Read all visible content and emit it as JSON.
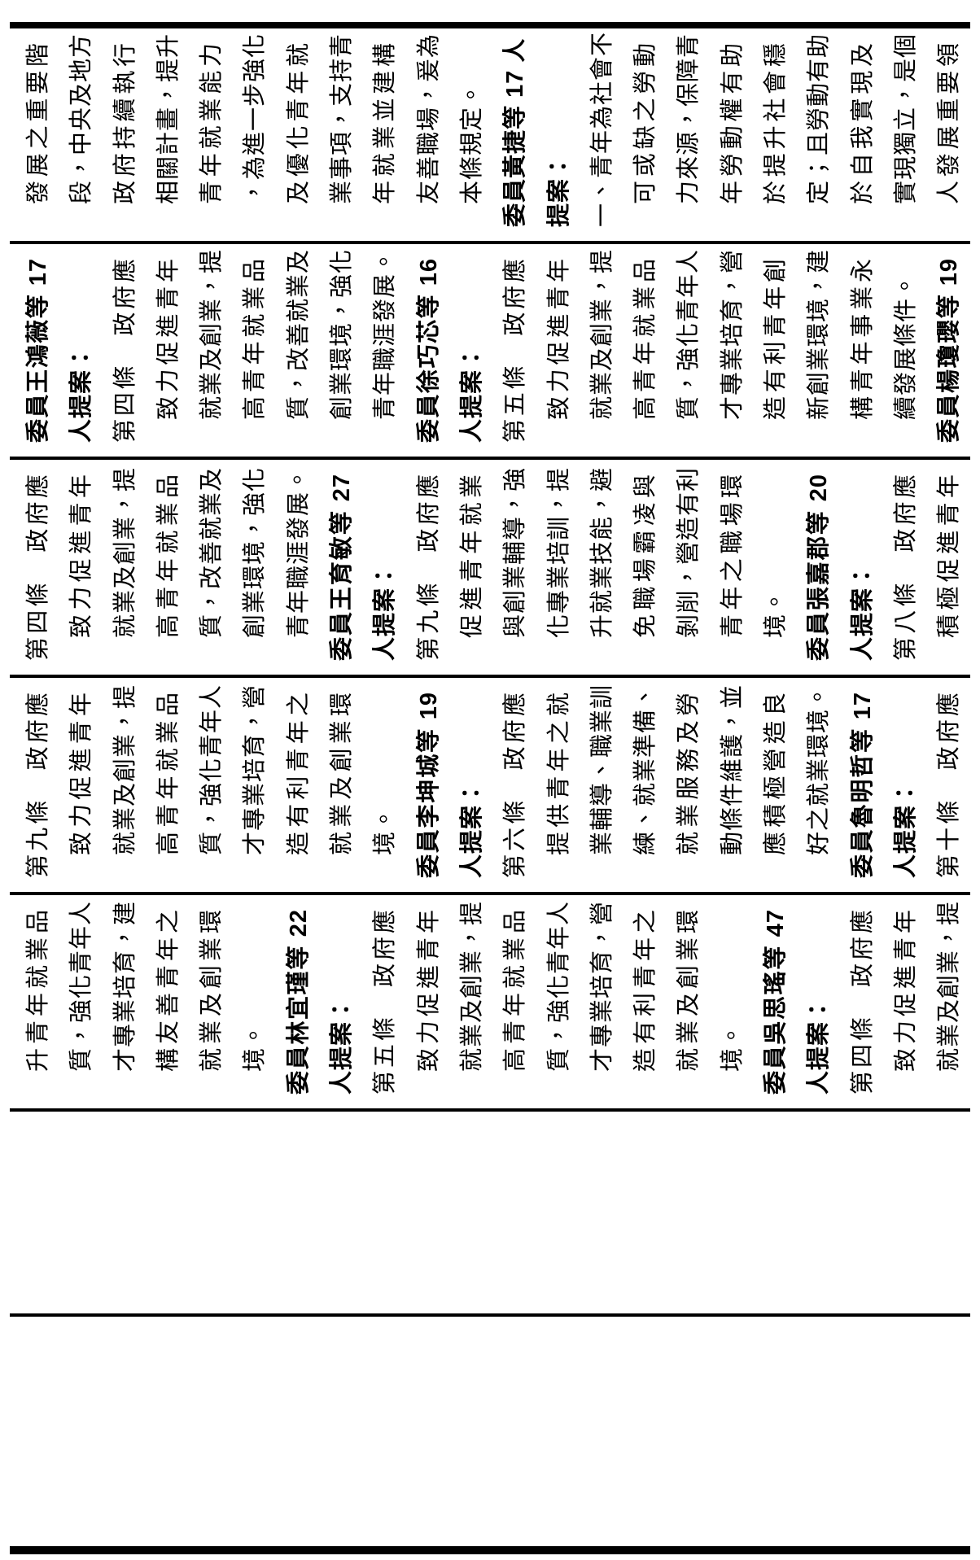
{
  "document": {
    "kind": "legislative-bill-comparison-table",
    "orientation": "landscape-rotated-90ccw",
    "ink_color": "#000000",
    "paper_color": "#ffffff",
    "columns": [
      {
        "name": "column-1-rightmost",
        "lines": [
          {
            "t": "發展之重要階",
            "b": false,
            "i": true,
            "f": true
          },
          {
            "t": "段，中央及地方",
            "b": false,
            "i": true,
            "f": true
          },
          {
            "t": "政府持續執行",
            "b": false,
            "i": true,
            "f": true
          },
          {
            "t": "相關計畫，提升",
            "b": false,
            "i": true,
            "f": true
          },
          {
            "t": "青年就業能力",
            "b": false,
            "i": true,
            "f": true
          },
          {
            "t": "，為進一步強化",
            "b": false,
            "i": true,
            "f": true
          },
          {
            "t": "及優化青年就",
            "b": false,
            "i": true,
            "f": true
          },
          {
            "t": "業事項，支持青",
            "b": false,
            "i": true,
            "f": true
          },
          {
            "t": "年就業並建構",
            "b": false,
            "i": true,
            "f": true
          },
          {
            "t": "友善職場，爰為",
            "b": false,
            "i": true,
            "f": true
          },
          {
            "t": "本條規定。",
            "b": false,
            "i": true,
            "f": false
          },
          {
            "t": "委員黃捷等 17 人",
            "b": true,
            "i": false,
            "f": true
          },
          {
            "t": "提案：",
            "b": true,
            "i": false,
            "f": false
          },
          {
            "t": "一、青年為社會不",
            "b": false,
            "i": false,
            "f": true
          },
          {
            "t": "可或缺之勞動",
            "b": false,
            "i": true,
            "f": true
          },
          {
            "t": "力來源，保障青",
            "b": false,
            "i": true,
            "f": true
          },
          {
            "t": "年勞動權有助",
            "b": false,
            "i": true,
            "f": true
          },
          {
            "t": "於提升社會穩",
            "b": false,
            "i": true,
            "f": true
          },
          {
            "t": "定；且勞動有助",
            "b": false,
            "i": true,
            "f": true
          },
          {
            "t": "於自我實現及",
            "b": false,
            "i": true,
            "f": true
          },
          {
            "t": "實現獨立，是個",
            "b": false,
            "i": true,
            "f": true
          },
          {
            "t": "人發展重要領",
            "b": false,
            "i": true,
            "f": true
          }
        ]
      },
      {
        "name": "column-2",
        "lines": [
          {
            "t": "委員王鴻薇等 17",
            "b": true,
            "i": false,
            "f": true
          },
          {
            "t": "人提案：",
            "b": true,
            "i": false,
            "f": false
          },
          {
            "t": "第四條　政府應",
            "b": false,
            "i": false,
            "f": true
          },
          {
            "t": "致力促進青年",
            "b": false,
            "i": true,
            "f": true
          },
          {
            "t": "就業及創業，提",
            "b": false,
            "i": true,
            "f": true
          },
          {
            "t": "高青年就業品",
            "b": false,
            "i": true,
            "f": true
          },
          {
            "t": "質，改善就業及",
            "b": false,
            "i": true,
            "f": true
          },
          {
            "t": "創業環境，強化",
            "b": false,
            "i": true,
            "f": true
          },
          {
            "t": "青年職涯發展。",
            "b": false,
            "i": true,
            "f": false
          },
          {
            "t": "委員徐巧芯等 16",
            "b": true,
            "i": false,
            "f": true
          },
          {
            "t": "人提案：",
            "b": true,
            "i": false,
            "f": false
          },
          {
            "t": "第五條　政府應",
            "b": false,
            "i": false,
            "f": true
          },
          {
            "t": "致力促進青年",
            "b": false,
            "i": true,
            "f": true
          },
          {
            "t": "就業及創業，提",
            "b": false,
            "i": true,
            "f": true
          },
          {
            "t": "高青年就業品",
            "b": false,
            "i": true,
            "f": true
          },
          {
            "t": "質，強化青年人",
            "b": false,
            "i": true,
            "f": true
          },
          {
            "t": "才專業培育，營",
            "b": false,
            "i": true,
            "f": true
          },
          {
            "t": "造有利青年創",
            "b": false,
            "i": true,
            "f": true
          },
          {
            "t": "新創業環境，建",
            "b": false,
            "i": true,
            "f": true
          },
          {
            "t": "構青年事業永",
            "b": false,
            "i": true,
            "f": true
          },
          {
            "t": "續發展條件。",
            "b": false,
            "i": true,
            "f": false
          },
          {
            "t": "委員楊瓊瓔等 19",
            "b": true,
            "i": false,
            "f": true
          }
        ]
      },
      {
        "name": "column-3",
        "lines": [
          {
            "t": "第四條　政府應",
            "b": false,
            "i": false,
            "f": true
          },
          {
            "t": "致力促進青年",
            "b": false,
            "i": true,
            "f": true
          },
          {
            "t": "就業及創業，提",
            "b": false,
            "i": true,
            "f": true
          },
          {
            "t": "高青年就業品",
            "b": false,
            "i": true,
            "f": true
          },
          {
            "t": "質，改善就業及",
            "b": false,
            "i": true,
            "f": true
          },
          {
            "t": "創業環境，強化",
            "b": false,
            "i": true,
            "f": true
          },
          {
            "t": "青年職涯發展。",
            "b": false,
            "i": true,
            "f": false
          },
          {
            "t": "委員王育敏等 27",
            "b": true,
            "i": false,
            "f": true
          },
          {
            "t": "人提案：",
            "b": true,
            "i": false,
            "f": false
          },
          {
            "t": "第九條　政府應",
            "b": false,
            "i": false,
            "f": true
          },
          {
            "t": "促進青年就業",
            "b": false,
            "i": true,
            "f": true
          },
          {
            "t": "與創業輔導，強",
            "b": false,
            "i": true,
            "f": true
          },
          {
            "t": "化專業培訓，提",
            "b": false,
            "i": true,
            "f": true
          },
          {
            "t": "升就業技能，避",
            "b": false,
            "i": true,
            "f": true
          },
          {
            "t": "免職場霸凌與",
            "b": false,
            "i": true,
            "f": true
          },
          {
            "t": "剝削，營造有利",
            "b": false,
            "i": true,
            "f": true
          },
          {
            "t": "青年之職場環",
            "b": false,
            "i": true,
            "f": true
          },
          {
            "t": "境。",
            "b": false,
            "i": true,
            "f": false
          },
          {
            "t": "委員張嘉郡等 20",
            "b": true,
            "i": false,
            "f": true
          },
          {
            "t": "人提案：",
            "b": true,
            "i": false,
            "f": false
          },
          {
            "t": "第八條　政府應",
            "b": false,
            "i": false,
            "f": true
          },
          {
            "t": "積極促進青年",
            "b": false,
            "i": true,
            "f": true
          }
        ]
      },
      {
        "name": "column-4",
        "lines": [
          {
            "t": "第九條　政府應",
            "b": false,
            "i": false,
            "f": true
          },
          {
            "t": "致力促進青年",
            "b": false,
            "i": true,
            "f": true
          },
          {
            "t": "就業及創業，提",
            "b": false,
            "i": true,
            "f": true
          },
          {
            "t": "高青年就業品",
            "b": false,
            "i": true,
            "f": true
          },
          {
            "t": "質，強化青年人",
            "b": false,
            "i": true,
            "f": true
          },
          {
            "t": "才專業培育，營",
            "b": false,
            "i": true,
            "f": true
          },
          {
            "t": "造有利青年之",
            "b": false,
            "i": true,
            "f": true
          },
          {
            "t": "就業及創業環",
            "b": false,
            "i": true,
            "f": true
          },
          {
            "t": "境。",
            "b": false,
            "i": true,
            "f": false
          },
          {
            "t": "委員李坤城等 19",
            "b": true,
            "i": false,
            "f": true
          },
          {
            "t": "人提案：",
            "b": true,
            "i": false,
            "f": false
          },
          {
            "t": "第六條　政府應",
            "b": false,
            "i": false,
            "f": true
          },
          {
            "t": "提供青年之就",
            "b": false,
            "i": true,
            "f": true
          },
          {
            "t": "業輔導、職業訓",
            "b": false,
            "i": true,
            "f": true
          },
          {
            "t": "練、就業準備、",
            "b": false,
            "i": true,
            "f": true
          },
          {
            "t": "就業服務及勞",
            "b": false,
            "i": true,
            "f": true
          },
          {
            "t": "動條件維護，並",
            "b": false,
            "i": true,
            "f": true
          },
          {
            "t": "應積極營造良",
            "b": false,
            "i": true,
            "f": true
          },
          {
            "t": "好之就業環境。",
            "b": false,
            "i": true,
            "f": false
          },
          {
            "t": "委員魯明哲等 17",
            "b": true,
            "i": false,
            "f": true
          },
          {
            "t": "人提案：",
            "b": true,
            "i": false,
            "f": false
          },
          {
            "t": "第十條　政府應",
            "b": false,
            "i": false,
            "f": true
          }
        ]
      },
      {
        "name": "column-5",
        "lines": [
          {
            "t": "升青年就業品",
            "b": false,
            "i": true,
            "f": true
          },
          {
            "t": "質，強化青年人",
            "b": false,
            "i": true,
            "f": true
          },
          {
            "t": "才專業培育，建",
            "b": false,
            "i": true,
            "f": true
          },
          {
            "t": "構友善青年之",
            "b": false,
            "i": true,
            "f": true
          },
          {
            "t": "就業及創業環",
            "b": false,
            "i": true,
            "f": true
          },
          {
            "t": "境。",
            "b": false,
            "i": true,
            "f": false
          },
          {
            "t": "委員林宜瑾等 22",
            "b": true,
            "i": false,
            "f": true
          },
          {
            "t": "人提案：",
            "b": true,
            "i": false,
            "f": false
          },
          {
            "t": "第五條　政府應",
            "b": false,
            "i": false,
            "f": true
          },
          {
            "t": "致力促進青年",
            "b": false,
            "i": true,
            "f": true
          },
          {
            "t": "就業及創業，提",
            "b": false,
            "i": true,
            "f": true
          },
          {
            "t": "高青年就業品",
            "b": false,
            "i": true,
            "f": true
          },
          {
            "t": "質，強化青年人",
            "b": false,
            "i": true,
            "f": true
          },
          {
            "t": "才專業培育，營",
            "b": false,
            "i": true,
            "f": true
          },
          {
            "t": "造有利青年之",
            "b": false,
            "i": true,
            "f": true
          },
          {
            "t": "就業及創業環",
            "b": false,
            "i": true,
            "f": true
          },
          {
            "t": "境。",
            "b": false,
            "i": true,
            "f": false
          },
          {
            "t": "委員吳思瑤等 47",
            "b": true,
            "i": false,
            "f": true
          },
          {
            "t": "人提案：",
            "b": true,
            "i": false,
            "f": false
          },
          {
            "t": "第四條　政府應",
            "b": false,
            "i": false,
            "f": true
          },
          {
            "t": "致力促進青年",
            "b": false,
            "i": true,
            "f": true
          },
          {
            "t": "就業及創業，提",
            "b": false,
            "i": true,
            "f": true
          }
        ]
      },
      {
        "name": "column-6-empty",
        "lines": []
      },
      {
        "name": "column-7-empty",
        "lines": []
      }
    ]
  }
}
